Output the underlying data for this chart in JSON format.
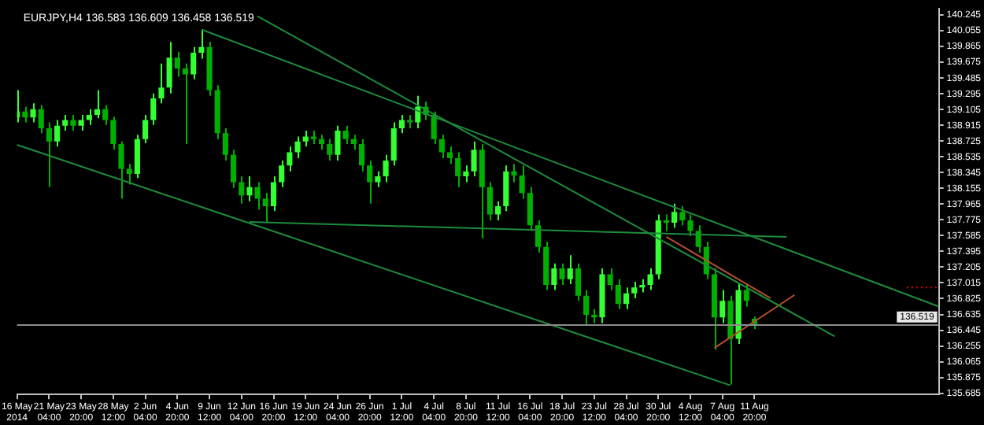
{
  "chart_data": {
    "type": "candlestick",
    "title": "EURJPY,H4 136.583 136.609 136.458 136.519",
    "colors": [
      "#33ff33",
      "#00b000",
      "#33ff33",
      "#00b000",
      "#00b000",
      "#33ff33",
      "#33ff33",
      "#00b000",
      "#33ff33",
      "#33ff33",
      "#33ff33",
      "#00b000",
      "#00b000",
      "#00b000",
      "#00b000",
      "#33ff33",
      "#33ff33",
      "#33ff33",
      "#33ff33",
      "#33ff33",
      "#00b000",
      "#00b000",
      "#33ff33",
      "#33ff33",
      "#00b000",
      "#00b000",
      "#00b000",
      "#00b000",
      "#00b000",
      "#33ff33",
      "#00b000",
      "#00b000",
      "#33ff33",
      "#33ff33",
      "#33ff33",
      "#33ff33",
      "#33ff33",
      "#00b000",
      "#00b000",
      "#00b000",
      "#33ff33",
      "#00b000",
      "#00b000",
      "#00b000",
      "#00b000",
      "#33ff33",
      "#33ff33",
      "#33ff33",
      "#33ff33",
      "#00b000",
      "#33ff33",
      "#00b000",
      "#00b000",
      "#00b000",
      "#00b000",
      "#00b000",
      "#33ff33",
      "#33ff33",
      "#00b000",
      "#00b000",
      "#33ff33",
      "#33ff33",
      "#00b000",
      "#00b000",
      "#00b000",
      "#00b000",
      "#00b000",
      "#33ff33",
      "#00b000",
      "#33ff33",
      "#00b000",
      "#00b000",
      "#00b000",
      "#33ff33",
      "#00b000",
      "#00b000",
      "#33ff33",
      "#33ff33",
      "#33ff33",
      "#33ff33",
      "#33ff33",
      "#00b000",
      "#33ff33",
      "#00b000",
      "#00b000",
      "#00b000",
      "#00b000",
      "#00b000",
      "#33ff33",
      "#00b000",
      "#33ff33",
      "#00b000",
      "#00b000",
      null,
      null,
      null,
      null,
      null,
      null,
      null,
      null,
      null,
      null,
      null,
      null,
      null,
      null,
      null,
      null,
      null,
      null,
      null,
      null,
      null,
      null,
      null
    ],
    "grid": false,
    "legend": false,
    "marker": "none",
    "categories": [
      "16 May 2014",
      null,
      null,
      null,
      "21 May 04:00",
      null,
      null,
      null,
      "23 May 20:00",
      null,
      null,
      null,
      "28 May 12:00",
      null,
      null,
      null,
      "2 Jun 04:00",
      null,
      null,
      null,
      "4 Jun 20:00",
      null,
      null,
      null,
      "9 Jun 12:00",
      null,
      null,
      null,
      "12 Jun 04:00",
      null,
      null,
      null,
      "16 Jun 20:00",
      null,
      null,
      null,
      "19 Jun 12:00",
      null,
      null,
      null,
      "24 Jun 04:00",
      null,
      null,
      null,
      "26 Jun 20:00",
      null,
      null,
      null,
      "1 Jul 12:00",
      null,
      null,
      null,
      "4 Jul 04:00",
      null,
      null,
      null,
      "8 Jul 20:00",
      null,
      null,
      null,
      "11 Jul 12:00",
      null,
      null,
      null,
      "16 Jul 04:00",
      null,
      null,
      null,
      "18 Jul 20:00",
      null,
      null,
      null,
      "23 Jul 12:00",
      null,
      null,
      null,
      "28 Jul 04:00",
      null,
      null,
      null,
      "30 Jul 20:00",
      null,
      null,
      null,
      "4 Aug 12:00",
      null,
      null,
      null,
      "7 Aug 04:00",
      null,
      null,
      null,
      "11 Aug 20:00",
      null,
      null,
      null,
      null,
      null,
      null,
      null,
      null,
      null,
      null,
      null,
      null,
      null,
      null,
      null,
      null,
      null,
      null,
      null,
      null,
      null,
      null,
      null
    ],
    "ohlc": [
      [
        139.01,
        139.34,
        138.95,
        139.08
      ],
      [
        139.08,
        139.14,
        138.95,
        139.01
      ],
      [
        139.01,
        139.18,
        138.95,
        139.11
      ],
      [
        139.11,
        139.16,
        138.82,
        138.88
      ],
      [
        138.88,
        138.95,
        138.17,
        138.72
      ],
      [
        138.72,
        138.98,
        138.66,
        138.91
      ],
      [
        138.91,
        139.04,
        138.85,
        138.98
      ],
      [
        138.98,
        139.04,
        138.85,
        138.91
      ],
      [
        138.91,
        139.04,
        138.85,
        138.98
      ],
      [
        138.98,
        139.11,
        138.92,
        139.04
      ],
      [
        139.04,
        139.34,
        139.0,
        139.11
      ],
      [
        139.11,
        139.16,
        138.92,
        138.98
      ],
      [
        138.98,
        139.02,
        138.62,
        138.69
      ],
      [
        138.69,
        138.72,
        138.03,
        138.39
      ],
      [
        138.39,
        138.45,
        138.2,
        138.33
      ],
      [
        138.33,
        138.8,
        138.28,
        138.75
      ],
      [
        138.75,
        139.04,
        138.7,
        138.98
      ],
      [
        138.98,
        139.3,
        138.92,
        139.24
      ],
      [
        139.24,
        139.66,
        139.18,
        139.37
      ],
      [
        139.37,
        139.92,
        139.3,
        139.73
      ],
      [
        139.73,
        139.8,
        139.5,
        139.6
      ],
      [
        139.6,
        139.66,
        138.69,
        139.53
      ],
      [
        139.53,
        139.86,
        139.47,
        139.79
      ],
      [
        139.79,
        140.07,
        139.72,
        139.86
      ],
      [
        139.86,
        139.92,
        139.27,
        139.34
      ],
      [
        139.34,
        139.4,
        138.75,
        138.82
      ],
      [
        138.82,
        138.88,
        138.49,
        138.56
      ],
      [
        138.56,
        138.62,
        138.16,
        138.23
      ],
      [
        138.23,
        138.3,
        137.97,
        138.07
      ],
      [
        138.07,
        138.3,
        138.0,
        138.17
      ],
      [
        138.17,
        138.23,
        137.9,
        138.03
      ],
      [
        138.03,
        138.1,
        137.74,
        137.94
      ],
      [
        137.94,
        138.3,
        137.88,
        138.23
      ],
      [
        138.23,
        138.49,
        138.17,
        138.43
      ],
      [
        138.43,
        138.66,
        138.36,
        138.59
      ],
      [
        138.59,
        138.78,
        138.52,
        138.72
      ],
      [
        138.72,
        138.85,
        138.66,
        138.78
      ],
      [
        138.78,
        138.85,
        138.69,
        138.75
      ],
      [
        138.75,
        138.8,
        138.62,
        138.69
      ],
      [
        138.69,
        138.75,
        138.49,
        138.56
      ],
      [
        138.56,
        138.91,
        138.49,
        138.85
      ],
      [
        138.85,
        138.91,
        138.69,
        138.75
      ],
      [
        138.75,
        138.8,
        138.62,
        138.69
      ],
      [
        138.69,
        138.75,
        138.36,
        138.43
      ],
      [
        138.43,
        138.49,
        137.97,
        138.23
      ],
      [
        138.23,
        138.36,
        138.17,
        138.3
      ],
      [
        138.3,
        138.56,
        138.23,
        138.49
      ],
      [
        138.49,
        138.95,
        138.43,
        138.88
      ],
      [
        138.88,
        139.04,
        138.82,
        138.98
      ],
      [
        138.98,
        139.04,
        138.88,
        138.95
      ],
      [
        138.95,
        139.27,
        138.88,
        139.14
      ],
      [
        139.14,
        139.2,
        138.98,
        139.04
      ],
      [
        139.04,
        139.08,
        138.69,
        138.75
      ],
      [
        138.75,
        138.8,
        138.52,
        138.59
      ],
      [
        138.59,
        138.66,
        138.45,
        138.52
      ],
      [
        138.52,
        138.59,
        138.17,
        138.3
      ],
      [
        138.3,
        138.43,
        138.23,
        138.36
      ],
      [
        138.36,
        138.72,
        138.3,
        138.62
      ],
      [
        138.62,
        138.69,
        137.55,
        138.17
      ],
      [
        138.17,
        138.23,
        137.77,
        137.84
      ],
      [
        137.84,
        138.0,
        137.77,
        137.94
      ],
      [
        137.94,
        138.43,
        137.88,
        138.36
      ],
      [
        138.36,
        138.45,
        138.23,
        138.31
      ],
      [
        138.31,
        138.43,
        138.03,
        138.1
      ],
      [
        138.1,
        138.17,
        137.64,
        137.71
      ],
      [
        137.71,
        137.77,
        137.38,
        137.45
      ],
      [
        137.45,
        137.51,
        136.93,
        136.99
      ],
      [
        136.99,
        137.25,
        136.93,
        137.19
      ],
      [
        137.19,
        137.25,
        136.99,
        137.06
      ],
      [
        137.06,
        137.35,
        137.0,
        137.19
      ],
      [
        137.19,
        137.25,
        136.8,
        136.86
      ],
      [
        136.86,
        136.93,
        136.5,
        136.63
      ],
      [
        136.63,
        136.7,
        136.53,
        136.6
      ],
      [
        136.6,
        137.19,
        136.53,
        137.12
      ],
      [
        137.12,
        137.19,
        136.93,
        136.99
      ],
      [
        136.99,
        137.06,
        136.7,
        136.76
      ],
      [
        136.76,
        136.96,
        136.7,
        136.89
      ],
      [
        136.89,
        137.03,
        136.83,
        136.96
      ],
      [
        136.96,
        137.06,
        136.9,
        136.99
      ],
      [
        136.99,
        137.19,
        136.93,
        137.12
      ],
      [
        137.12,
        137.84,
        137.06,
        137.77
      ],
      [
        137.77,
        137.84,
        137.64,
        137.74
      ],
      [
        137.74,
        137.97,
        137.68,
        137.87
      ],
      [
        137.87,
        137.94,
        137.71,
        137.77
      ],
      [
        137.77,
        137.84,
        137.58,
        137.64
      ],
      [
        137.64,
        137.71,
        137.38,
        137.45
      ],
      [
        137.45,
        137.51,
        137.06,
        137.12
      ],
      [
        137.12,
        137.19,
        136.21,
        136.6
      ],
      [
        136.6,
        136.93,
        136.53,
        136.8
      ],
      [
        136.8,
        136.86,
        135.79,
        136.34
      ],
      [
        136.34,
        137.0,
        136.28,
        136.93
      ],
      [
        136.93,
        137.0,
        136.73,
        136.8
      ],
      [
        136.583,
        136.609,
        136.458,
        136.519
      ],
      null,
      null,
      null,
      null,
      null,
      null,
      null,
      null,
      null,
      null,
      null,
      null,
      null,
      null,
      null,
      null,
      null,
      null,
      null,
      null,
      null,
      null,
      null
    ],
    "series": [
      {
        "type": "line",
        "color": "#1e8c3c",
        "values": [
          138.68,
          null,
          null,
          null,
          null,
          null,
          null,
          null,
          null,
          null,
          null,
          null,
          null,
          null,
          null,
          null,
          null,
          null,
          null,
          null,
          null,
          null,
          null,
          null,
          null,
          null,
          null,
          null,
          null,
          null,
          null,
          null,
          null,
          null,
          null,
          null,
          null,
          null,
          null,
          null,
          null,
          null,
          null,
          null,
          null,
          null,
          null,
          null,
          null,
          null,
          null,
          null,
          null,
          null,
          null,
          null,
          null,
          null,
          null,
          null,
          null,
          null,
          null,
          null,
          null,
          null,
          null,
          null,
          null,
          null,
          null,
          null,
          null,
          null,
          null,
          null,
          null,
          null,
          null,
          null,
          null,
          null,
          null,
          null,
          null,
          null,
          null,
          null,
          null,
          135.78,
          null,
          null,
          null,
          null,
          null,
          null,
          null,
          null,
          null,
          null,
          null,
          null,
          null,
          null,
          null,
          null,
          null,
          null,
          null,
          null,
          null,
          null,
          null,
          null,
          null,
          null
        ]
      },
      {
        "type": "line",
        "color": "#1e8c3c",
        "values": [
          null,
          null,
          null,
          null,
          null,
          null,
          null,
          null,
          null,
          null,
          null,
          null,
          null,
          null,
          null,
          null,
          null,
          null,
          null,
          null,
          null,
          null,
          null,
          140.07,
          null,
          null,
          null,
          null,
          null,
          null,
          null,
          null,
          null,
          null,
          null,
          null,
          null,
          null,
          null,
          null,
          null,
          null,
          null,
          null,
          null,
          null,
          null,
          null,
          null,
          null,
          null,
          null,
          null,
          null,
          null,
          null,
          null,
          null,
          null,
          null,
          null,
          null,
          null,
          null,
          null,
          null,
          null,
          null,
          null,
          null,
          null,
          null,
          null,
          null,
          null,
          null,
          null,
          null,
          null,
          null,
          null,
          null,
          null,
          null,
          null,
          null,
          null,
          null,
          null,
          null,
          null,
          null,
          null,
          null,
          null,
          null,
          null,
          null,
          null,
          null,
          null,
          null,
          null,
          null,
          null,
          null,
          null,
          null,
          null,
          null,
          null,
          null,
          null,
          null,
          null,
          136.73
        ]
      },
      {
        "type": "line",
        "color": "#1e8c3c",
        "values": [
          null,
          null,
          null,
          null,
          null,
          null,
          null,
          null,
          null,
          null,
          null,
          null,
          null,
          null,
          null,
          null,
          null,
          null,
          null,
          null,
          null,
          null,
          null,
          null,
          null,
          null,
          null,
          null,
          null,
          null,
          140.23,
          null,
          null,
          null,
          null,
          null,
          null,
          null,
          null,
          null,
          null,
          null,
          null,
          null,
          null,
          null,
          null,
          null,
          null,
          null,
          null,
          null,
          null,
          null,
          null,
          null,
          null,
          null,
          null,
          null,
          null,
          null,
          null,
          null,
          null,
          null,
          null,
          null,
          null,
          null,
          null,
          null,
          null,
          null,
          null,
          null,
          null,
          null,
          null,
          null,
          null,
          null,
          null,
          null,
          null,
          null,
          null,
          null,
          null,
          null,
          null,
          null,
          null,
          null,
          null,
          null,
          null,
          null,
          null,
          null,
          null,
          null,
          136.37,
          null,
          null,
          null,
          null,
          null,
          null,
          null,
          null,
          null,
          null,
          null,
          null,
          null
        ]
      },
      {
        "type": "line",
        "color": "#1e8c3c",
        "values": [
          null,
          null,
          null,
          null,
          null,
          null,
          null,
          null,
          null,
          null,
          null,
          null,
          null,
          null,
          null,
          null,
          null,
          null,
          null,
          null,
          null,
          null,
          null,
          null,
          null,
          null,
          null,
          null,
          null,
          137.75,
          null,
          null,
          null,
          null,
          null,
          null,
          null,
          null,
          null,
          null,
          null,
          null,
          null,
          null,
          null,
          null,
          null,
          null,
          null,
          null,
          null,
          null,
          null,
          null,
          null,
          null,
          null,
          null,
          null,
          null,
          null,
          null,
          null,
          null,
          null,
          null,
          null,
          null,
          null,
          null,
          null,
          null,
          null,
          null,
          null,
          null,
          null,
          null,
          null,
          null,
          null,
          null,
          null,
          null,
          null,
          null,
          null,
          null,
          null,
          null,
          null,
          null,
          null,
          null,
          null,
          null,
          137.57,
          null,
          null,
          null,
          null,
          null,
          null,
          null,
          null,
          null,
          null,
          null,
          null,
          null,
          null,
          null,
          null,
          null,
          null,
          null
        ]
      },
      {
        "type": "line",
        "color": "#b4502d",
        "values": [
          null,
          null,
          null,
          null,
          null,
          null,
          null,
          null,
          null,
          null,
          null,
          null,
          null,
          null,
          null,
          null,
          null,
          null,
          null,
          null,
          null,
          null,
          null,
          null,
          null,
          null,
          null,
          null,
          null,
          null,
          null,
          null,
          null,
          null,
          null,
          null,
          null,
          null,
          null,
          null,
          null,
          null,
          null,
          null,
          null,
          null,
          null,
          null,
          null,
          null,
          null,
          null,
          null,
          null,
          null,
          null,
          null,
          null,
          null,
          null,
          null,
          null,
          null,
          null,
          null,
          null,
          null,
          null,
          null,
          null,
          null,
          null,
          null,
          null,
          null,
          null,
          null,
          null,
          null,
          null,
          null,
          137.57,
          null,
          null,
          null,
          null,
          null,
          null,
          null,
          null,
          null,
          null,
          null,
          null,
          136.83,
          null,
          null,
          null,
          null,
          null,
          null,
          null,
          null,
          null,
          null,
          null,
          null,
          null,
          null,
          null,
          null,
          null,
          null,
          null,
          null,
          null
        ]
      },
      {
        "type": "line",
        "color": "#b4502d",
        "values": [
          null,
          null,
          null,
          null,
          null,
          null,
          null,
          null,
          null,
          null,
          null,
          null,
          null,
          null,
          null,
          null,
          null,
          null,
          null,
          null,
          null,
          null,
          null,
          null,
          null,
          null,
          null,
          null,
          null,
          null,
          null,
          null,
          null,
          null,
          null,
          null,
          null,
          null,
          null,
          null,
          null,
          null,
          null,
          null,
          null,
          null,
          null,
          null,
          null,
          null,
          null,
          null,
          null,
          null,
          null,
          null,
          null,
          null,
          null,
          null,
          null,
          null,
          null,
          null,
          null,
          null,
          null,
          null,
          null,
          null,
          null,
          null,
          null,
          null,
          null,
          null,
          null,
          null,
          null,
          null,
          null,
          null,
          null,
          null,
          null,
          null,
          null,
          136.23,
          null,
          null,
          null,
          null,
          null,
          null,
          null,
          null,
          null,
          136.87,
          null,
          null,
          null,
          null,
          null,
          null,
          null,
          null,
          null,
          null,
          null,
          null,
          null,
          null,
          null,
          null,
          null,
          null
        ]
      },
      {
        "type": "line",
        "color": "#e00000",
        "line_style": "dotted",
        "values": [
          null,
          null,
          null,
          null,
          null,
          null,
          null,
          null,
          null,
          null,
          null,
          null,
          null,
          null,
          null,
          null,
          null,
          null,
          null,
          null,
          null,
          null,
          null,
          null,
          null,
          null,
          null,
          null,
          null,
          null,
          null,
          null,
          null,
          null,
          null,
          null,
          null,
          null,
          null,
          null,
          null,
          null,
          null,
          null,
          null,
          null,
          null,
          null,
          null,
          null,
          null,
          null,
          null,
          null,
          null,
          null,
          null,
          null,
          null,
          null,
          null,
          null,
          null,
          null,
          null,
          null,
          null,
          null,
          null,
          null,
          null,
          null,
          null,
          null,
          null,
          null,
          null,
          null,
          null,
          null,
          null,
          null,
          null,
          null,
          null,
          null,
          null,
          null,
          null,
          null,
          null,
          null,
          null,
          null,
          null,
          null,
          null,
          null,
          null,
          null,
          null,
          null,
          null,
          null,
          null,
          null,
          null,
          null,
          null,
          null,
          null,
          136.96,
          null,
          null,
          null,
          136.96
        ]
      }
    ],
    "ylim": [
      135.67,
      140.32
    ],
    "yticks": [
      135.685,
      135.875,
      136.065,
      136.255,
      136.445,
      136.635,
      136.825,
      137.015,
      137.205,
      137.395,
      137.585,
      137.775,
      137.965,
      138.155,
      138.345,
      138.535,
      138.725,
      138.915,
      139.105,
      139.295,
      139.485,
      139.675,
      139.865,
      140.055,
      140.245
    ],
    "ref_lines": [
      {
        "axis": "y",
        "value": 136.519,
        "label": "136.519",
        "color": "#8c8c8c"
      }
    ]
  }
}
